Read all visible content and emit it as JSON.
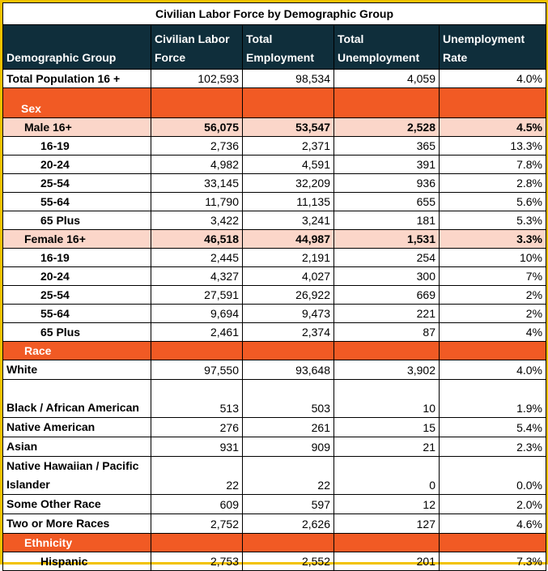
{
  "title": "Civilian Labor Force by Demographic Group",
  "columns": [
    "Demographic Group",
    "Civilian Labor Force",
    "Total Employment",
    "Total Unemployment",
    "Unemployment Rate"
  ],
  "total": {
    "label": "Total Population 16 +",
    "labor": "102,593",
    "employment": "98,534",
    "unemployment": "4,059",
    "rate": "4.0%"
  },
  "sections": {
    "sex": "Sex",
    "race": "Race",
    "ethnicity": "Ethnicity"
  },
  "male": {
    "group": {
      "label": "Male 16+",
      "labor": "56,075",
      "employment": "53,547",
      "unemployment": "2,528",
      "rate": "4.5%"
    },
    "rows": [
      {
        "label": "16-19",
        "labor": "2,736",
        "employment": "2,371",
        "unemployment": "365",
        "rate": "13.3%"
      },
      {
        "label": "20-24",
        "labor": "4,982",
        "employment": "4,591",
        "unemployment": "391",
        "rate": "7.8%"
      },
      {
        "label": "25-54",
        "labor": "33,145",
        "employment": "32,209",
        "unemployment": "936",
        "rate": "2.8%"
      },
      {
        "label": "55-64",
        "labor": "11,790",
        "employment": "11,135",
        "unemployment": "655",
        "rate": "5.6%"
      },
      {
        "label": "65 Plus",
        "labor": "3,422",
        "employment": "3,241",
        "unemployment": "181",
        "rate": "5.3%"
      }
    ]
  },
  "female": {
    "group": {
      "label": "Female 16+",
      "labor": "46,518",
      "employment": "44,987",
      "unemployment": "1,531",
      "rate": "3.3%"
    },
    "rows": [
      {
        "label": "16-19",
        "labor": "2,445",
        "employment": "2,191",
        "unemployment": "254",
        "rate": "10%"
      },
      {
        "label": "20-24",
        "labor": "4,327",
        "employment": "4,027",
        "unemployment": "300",
        "rate": "7%"
      },
      {
        "label": "25-54",
        "labor": "27,591",
        "employment": "26,922",
        "unemployment": "669",
        "rate": "2%"
      },
      {
        "label": "55-64",
        "labor": "9,694",
        "employment": "9,473",
        "unemployment": "221",
        "rate": "2%"
      },
      {
        "label": "65 Plus",
        "labor": "2,461",
        "employment": "2,374",
        "unemployment": "87",
        "rate": "4%"
      }
    ]
  },
  "race": [
    {
      "label": "White",
      "labor": "97,550",
      "employment": "93,648",
      "unemployment": "3,902",
      "rate": "4.0%"
    },
    {
      "label": "Black / African American",
      "labor": "513",
      "employment": "503",
      "unemployment": "10",
      "rate": "1.9%"
    },
    {
      "label": "Native American",
      "labor": "276",
      "employment": "261",
      "unemployment": "15",
      "rate": "5.4%"
    },
    {
      "label": "Asian",
      "labor": "931",
      "employment": "909",
      "unemployment": "21",
      "rate": "2.3%"
    },
    {
      "label": "Native Hawaiian / Pacific Islander",
      "labor": "22",
      "employment": "22",
      "unemployment": "0",
      "rate": "0.0%"
    },
    {
      "label": "Some Other Race",
      "labor": "609",
      "employment": "597",
      "unemployment": "12",
      "rate": "2.0%"
    },
    {
      "label": "Two or More Races",
      "labor": "2,752",
      "employment": "2,626",
      "unemployment": "127",
      "rate": "4.6%"
    }
  ],
  "ethnicity": [
    {
      "label": "Hispanic",
      "labor": "2,753",
      "employment": "2,552",
      "unemployment": "201",
      "rate": "7.3%"
    }
  ],
  "colors": {
    "header_bg": "#0f2e3b",
    "section_bg": "#f15a24",
    "group_bg": "#fbd6c9",
    "frame": "#f2c200"
  }
}
